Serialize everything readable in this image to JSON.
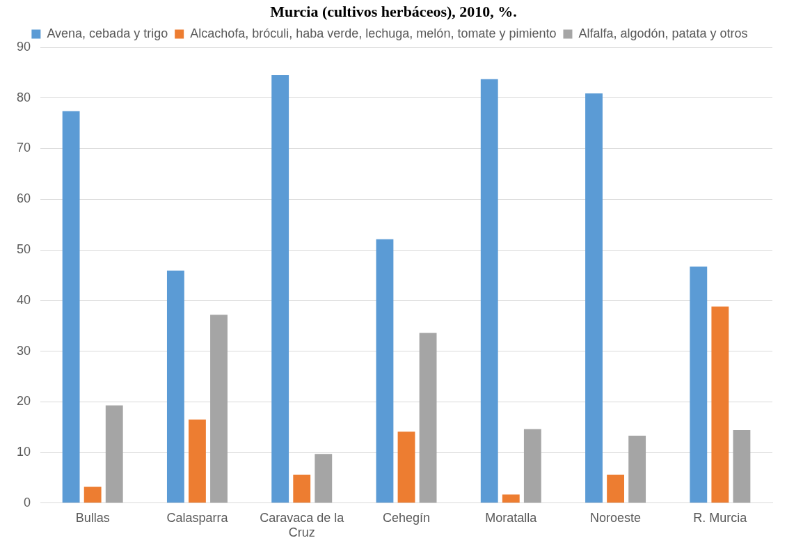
{
  "chart_data": {
    "type": "bar",
    "title": "Murcia (cultivos herbáceos), 2010, %.",
    "categories": [
      "Bullas",
      "Calasparra",
      "Caravaca de la Cruz",
      "Cehegín",
      "Moratalla",
      "Noroeste",
      "R. Murcia"
    ],
    "series": [
      {
        "name": "Avena, cebada y trigo",
        "color": "#5b9bd5",
        "values": [
          77.4,
          45.9,
          84.5,
          52.1,
          83.7,
          80.9,
          46.7
        ]
      },
      {
        "name": "Alcachofa, bróculi, haba verde, lechuga, melón, tomate y pimiento",
        "color": "#ed7d31",
        "values": [
          3.2,
          16.5,
          5.6,
          14.1,
          1.7,
          5.6,
          38.8
        ]
      },
      {
        "name": "Alfalfa, algodón, patata y otros",
        "color": "#a5a5a5",
        "values": [
          19.3,
          37.2,
          9.7,
          33.6,
          14.6,
          13.3,
          14.4
        ]
      }
    ],
    "ylim": [
      0,
      90
    ],
    "yticks": [
      0,
      10,
      20,
      30,
      40,
      50,
      60,
      70,
      80,
      90
    ],
    "grid": "y",
    "legend": "top"
  }
}
